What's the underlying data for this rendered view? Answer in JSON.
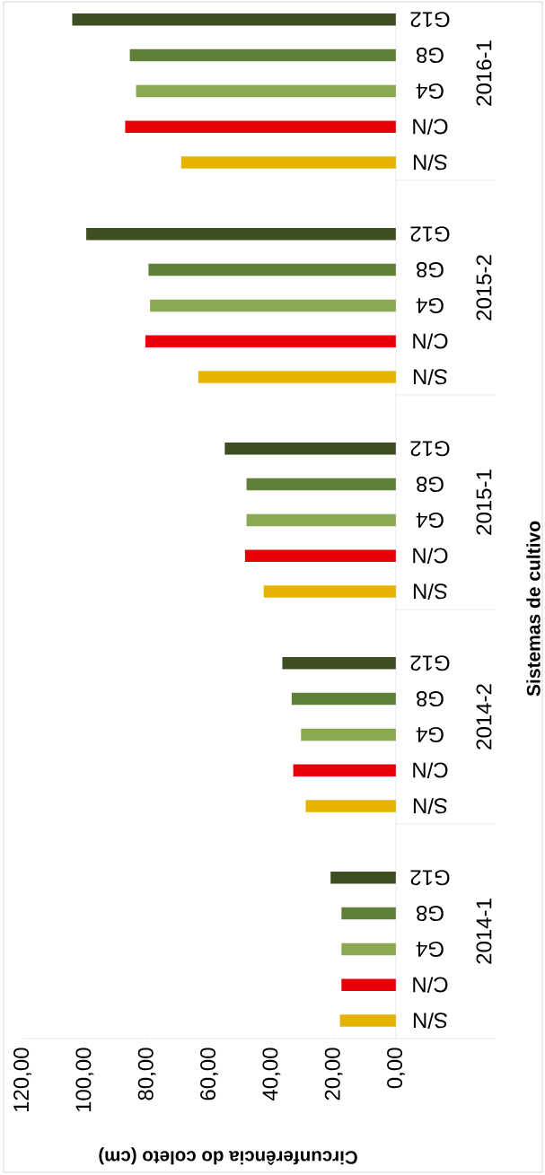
{
  "chart_data": {
    "type": "bar",
    "orientation": "horizontal",
    "xlabel": "Circunferência do coleto (cm)",
    "ylabel": "Sistemas de cultivo",
    "categories": [
      "2016-1",
      "2015-2",
      "2015-1",
      "2014-2",
      "2014-1"
    ],
    "series": [
      {
        "name": "S/N",
        "color": "#e6b400",
        "values": [
          69,
          63.5,
          42.5,
          29,
          18
        ]
      },
      {
        "name": "C/N",
        "color": "#e8000b",
        "values": [
          87,
          80.5,
          48.5,
          33,
          17.5
        ]
      },
      {
        "name": "G4",
        "color": "#8aa851",
        "values": [
          83.5,
          79,
          48,
          30.5,
          17.5
        ]
      },
      {
        "name": "G8",
        "color": "#60803a",
        "values": [
          85.5,
          79.5,
          48,
          33.5,
          17.5
        ]
      },
      {
        "name": "G12",
        "color": "#3d4f22",
        "values": [
          104,
          99.5,
          55,
          36.5,
          21
        ]
      }
    ],
    "xlim": [
      120,
      0
    ],
    "xticks": [
      {
        "value": 0,
        "label": "0,00"
      },
      {
        "value": 20,
        "label": "20,00"
      },
      {
        "value": 40,
        "label": "40,00"
      },
      {
        "value": 60,
        "label": "60,00"
      },
      {
        "value": 80,
        "label": "80,00"
      },
      {
        "value": 100,
        "label": "100,00"
      },
      {
        "value": 120,
        "label": "120,00"
      }
    ]
  }
}
